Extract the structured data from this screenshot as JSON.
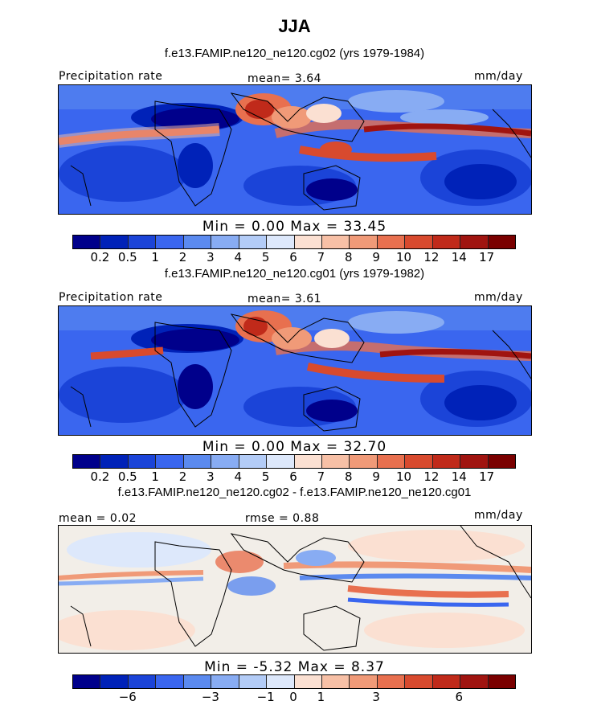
{
  "title": "JJA",
  "panels": [
    {
      "subtitle": "f.e13.FAMIP.ne120_ne120.cg02 (yrs 1979-1984)",
      "left_label": "Precipitation rate",
      "center_label": "mean=   3.64",
      "right_label": "mm/day",
      "minmax": "Min =    0.00  Max =   33.45",
      "field": "precip"
    },
    {
      "subtitle": "f.e13.FAMIP.ne120_ne120.cg01 (yrs 1979-1982)",
      "left_label": "Precipitation rate",
      "center_label": "mean=   3.61",
      "right_label": "mm/day",
      "minmax": "Min =    0.00  Max =   32.70",
      "field": "precip"
    },
    {
      "subtitle": "f.e13.FAMIP.ne120_ne120.cg02 - f.e13.FAMIP.ne120_ne120.cg01",
      "left_label": "mean =   0.02",
      "center_label": "rmse =   0.88",
      "right_label": "mm/day",
      "minmax": "Min =  -5.32  Max =    8.37",
      "field": "diff"
    }
  ],
  "colorbar_precip": {
    "colors": [
      "#00008b",
      "#0022b8",
      "#1b44d8",
      "#3a66ef",
      "#5b8aef",
      "#88acf3",
      "#b3ccf7",
      "#dde8fb",
      "#fbe0d2",
      "#f7c0a6",
      "#f09a78",
      "#e8704f",
      "#d84a2e",
      "#c02a1a",
      "#a01410",
      "#7a0000"
    ],
    "ticks": [
      "0.2",
      "0.5",
      "1",
      "2",
      "3",
      "4",
      "5",
      "6",
      "7",
      "8",
      "9",
      "10",
      "12",
      "14",
      "17"
    ]
  },
  "colorbar_diff": {
    "colors": [
      "#00008b",
      "#0022b8",
      "#1b44d8",
      "#3a66ef",
      "#5b8aef",
      "#88acf3",
      "#b3ccf7",
      "#dde8fb",
      "#fbe0d2",
      "#f7c0a6",
      "#f09a78",
      "#e8704f",
      "#d84a2e",
      "#c02a1a",
      "#a01410",
      "#7a0000"
    ],
    "ticks": [
      {
        "label": "−6",
        "pos": 2
      },
      {
        "label": "−3",
        "pos": 5
      },
      {
        "label": "−1",
        "pos": 7
      },
      {
        "label": "0",
        "pos": 8
      },
      {
        "label": "1",
        "pos": 9
      },
      {
        "label": "3",
        "pos": 11
      },
      {
        "label": "6",
        "pos": 14
      }
    ]
  }
}
